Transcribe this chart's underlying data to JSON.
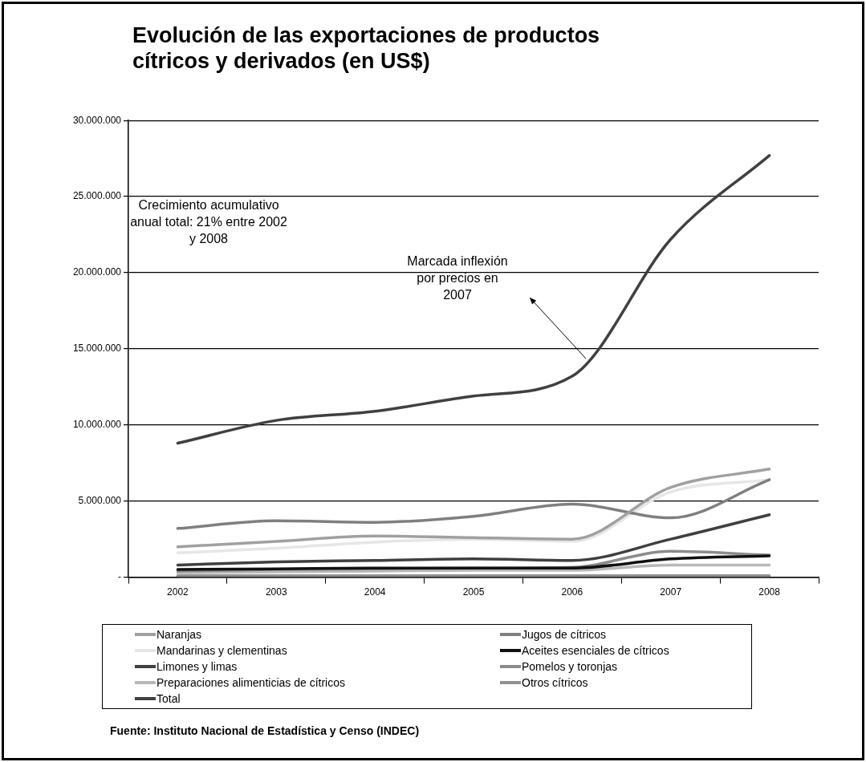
{
  "chart_data": {
    "type": "line",
    "title": "Evolución de las exportaciones de productos cítricos y derivados (en US$)",
    "categories": [
      "2002",
      "2003",
      "2004",
      "2005",
      "2006",
      "2007",
      "2008"
    ],
    "series": [
      {
        "name": "Naranjas",
        "color": "#a0a0a0",
        "values": [
          2000000,
          2350000,
          2700000,
          2600000,
          2500000,
          5900000,
          7100000
        ]
      },
      {
        "name": "Jugos de cítricos",
        "color": "#7f7f7f",
        "values": [
          3200000,
          3700000,
          3600000,
          4000000,
          4800000,
          3900000,
          6400000
        ]
      },
      {
        "name": "Mandarinas y clementinas",
        "color": "#e6e6e6",
        "values": [
          1600000,
          1900000,
          2300000,
          2500000,
          2350000,
          5600000,
          6400000
        ]
      },
      {
        "name": "Aceites esenciales de cítricos",
        "color": "#111111",
        "values": [
          500000,
          550000,
          600000,
          600000,
          600000,
          1200000,
          1400000
        ]
      },
      {
        "name": "Limones y limas",
        "color": "#3f3f3f",
        "values": [
          800000,
          1000000,
          1100000,
          1200000,
          1100000,
          2500000,
          4100000
        ]
      },
      {
        "name": "Pomelos y toronjas",
        "color": "#8c8c8c",
        "values": [
          400000,
          500000,
          550000,
          600000,
          650000,
          1700000,
          1450000
        ]
      },
      {
        "name": "Preparaciones alimenticias de cítricos",
        "color": "#b8b8b8",
        "values": [
          300000,
          350000,
          400000,
          450000,
          450000,
          800000,
          800000
        ]
      },
      {
        "name": "Otros cítricos",
        "color": "#909090",
        "values": [
          100000,
          100000,
          100000,
          100000,
          100000,
          100000,
          100000
        ]
      },
      {
        "name": "Total",
        "color": "#404040",
        "values": [
          8800000,
          10300000,
          10900000,
          11900000,
          13200000,
          22200000,
          27700000
        ]
      }
    ],
    "ylim": [
      0,
      30000000
    ],
    "yticks": [
      {
        "value": 0,
        "label": "-"
      },
      {
        "value": 5000000,
        "label": "5.000.000"
      },
      {
        "value": 10000000,
        "label": "10.000.000"
      },
      {
        "value": 15000000,
        "label": "15.000.000"
      },
      {
        "value": 20000000,
        "label": "20.000.000"
      },
      {
        "value": 25000000,
        "label": "25.000.000"
      },
      {
        "value": 30000000,
        "label": "30.000.000"
      }
    ],
    "grid": "y",
    "legend": "bottom",
    "marker": "none",
    "line_style": "solid",
    "annotations": [
      "Crecimiento acumulativo anual total: 21% entre 2002 y 2008",
      "Marcada inflexión por precios en 2007",
      "Fuente: Instituto Nacional de Estadística y Censo (INDEC)"
    ]
  }
}
